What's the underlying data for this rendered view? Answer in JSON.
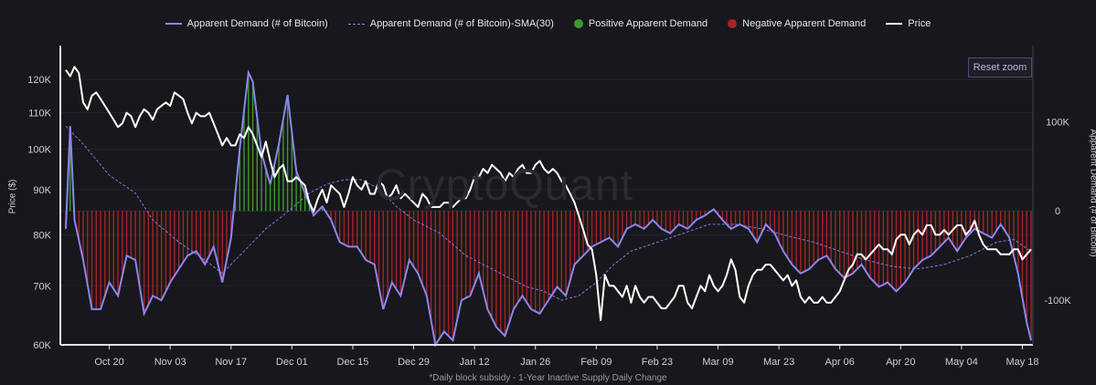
{
  "chart_data": {
    "type": "bar+line",
    "legend": [
      {
        "label": "Apparent Demand (# of Bitcoin)",
        "kind": "line",
        "color": "#8a86f0"
      },
      {
        "label": "Apparent Demand (# of Bitcoin)-SMA(30)",
        "kind": "dash",
        "color": "#8a86f0"
      },
      {
        "label": "Positive Apparent Demand",
        "kind": "dot",
        "color": "#3c9a2e"
      },
      {
        "label": "Negative Apparent Demand",
        "kind": "dot",
        "color": "#a52424"
      },
      {
        "label": "Price",
        "kind": "white",
        "color": "#ffffff"
      }
    ],
    "ylabel_left": "Price ($)",
    "ylabel_right": "Apparent Demand (# of Bitcoin)",
    "left_axis": {
      "scale": "log",
      "ylim": [
        60000,
        128000
      ],
      "ticks": [
        60000,
        70000,
        80000,
        90000,
        100000,
        110000,
        120000
      ],
      "tick_labels": [
        "60K",
        "70K",
        "80K",
        "90K",
        "100K",
        "110K",
        "120K"
      ]
    },
    "right_axis": {
      "ylim": [
        -150000,
        175000
      ],
      "ticks": [
        100000,
        0,
        -100000
      ],
      "tick_labels": [
        "100K",
        "0",
        "-100K"
      ]
    },
    "x_ticks": [
      "Oct 20",
      "Nov 03",
      "Nov 17",
      "Dec 01",
      "Dec 15",
      "Dec 29",
      "Jan 12",
      "Jan 26",
      "Feb 09",
      "Feb 23",
      "Mar 09",
      "Mar 23",
      "Apr 06",
      "Apr 20",
      "May 04",
      "May 18"
    ],
    "x_start_day_offset": -10,
    "x_end_day_offset": 212,
    "demand_anchors": [
      [
        -10,
        -20000
      ],
      [
        -9,
        95000
      ],
      [
        -8,
        -10000
      ],
      [
        -6,
        -55000
      ],
      [
        -4,
        -110000
      ],
      [
        -2,
        -110000
      ],
      [
        0,
        -80000
      ],
      [
        2,
        -95000
      ],
      [
        4,
        -50000
      ],
      [
        6,
        -55000
      ],
      [
        8,
        -115000
      ],
      [
        10,
        -95000
      ],
      [
        12,
        -100000
      ],
      [
        14,
        -80000
      ],
      [
        16,
        -65000
      ],
      [
        18,
        -50000
      ],
      [
        20,
        -45000
      ],
      [
        22,
        -60000
      ],
      [
        24,
        -40000
      ],
      [
        26,
        -80000
      ],
      [
        28,
        -30000
      ],
      [
        30,
        70000
      ],
      [
        32,
        155000
      ],
      [
        33,
        145000
      ],
      [
        35,
        65000
      ],
      [
        37,
        30000
      ],
      [
        39,
        75000
      ],
      [
        41,
        130000
      ],
      [
        43,
        45000
      ],
      [
        45,
        20000
      ],
      [
        47,
        -5000
      ],
      [
        49,
        5000
      ],
      [
        51,
        -10000
      ],
      [
        53,
        -35000
      ],
      [
        55,
        -40000
      ],
      [
        57,
        -40000
      ],
      [
        59,
        -55000
      ],
      [
        61,
        -60000
      ],
      [
        63,
        -110000
      ],
      [
        65,
        -80000
      ],
      [
        67,
        -95000
      ],
      [
        69,
        -55000
      ],
      [
        71,
        -70000
      ],
      [
        73,
        -95000
      ],
      [
        75,
        -150000
      ],
      [
        77,
        -135000
      ],
      [
        79,
        -145000
      ],
      [
        81,
        -100000
      ],
      [
        83,
        -95000
      ],
      [
        85,
        -70000
      ],
      [
        87,
        -110000
      ],
      [
        89,
        -130000
      ],
      [
        91,
        -140000
      ],
      [
        93,
        -110000
      ],
      [
        95,
        -95000
      ],
      [
        97,
        -110000
      ],
      [
        99,
        -115000
      ],
      [
        101,
        -100000
      ],
      [
        103,
        -85000
      ],
      [
        105,
        -95000
      ],
      [
        107,
        -60000
      ],
      [
        109,
        -50000
      ],
      [
        111,
        -40000
      ],
      [
        113,
        -35000
      ],
      [
        115,
        -30000
      ],
      [
        117,
        -40000
      ],
      [
        119,
        -20000
      ],
      [
        121,
        -15000
      ],
      [
        123,
        -20000
      ],
      [
        125,
        -10000
      ],
      [
        127,
        -20000
      ],
      [
        129,
        -25000
      ],
      [
        131,
        -15000
      ],
      [
        133,
        -20000
      ],
      [
        135,
        -10000
      ],
      [
        137,
        -5000
      ],
      [
        139,
        2000
      ],
      [
        141,
        -10000
      ],
      [
        143,
        -20000
      ],
      [
        145,
        -15000
      ],
      [
        147,
        -20000
      ],
      [
        149,
        -35000
      ],
      [
        151,
        -15000
      ],
      [
        153,
        -25000
      ],
      [
        155,
        -45000
      ],
      [
        157,
        -60000
      ],
      [
        159,
        -70000
      ],
      [
        161,
        -65000
      ],
      [
        163,
        -55000
      ],
      [
        165,
        -50000
      ],
      [
        167,
        -65000
      ],
      [
        169,
        -75000
      ],
      [
        171,
        -70000
      ],
      [
        173,
        -60000
      ],
      [
        175,
        -75000
      ],
      [
        177,
        -85000
      ],
      [
        179,
        -80000
      ],
      [
        181,
        -90000
      ],
      [
        183,
        -80000
      ],
      [
        185,
        -65000
      ],
      [
        187,
        -55000
      ],
      [
        189,
        -50000
      ],
      [
        191,
        -40000
      ],
      [
        193,
        -30000
      ],
      [
        195,
        -45000
      ],
      [
        197,
        -30000
      ],
      [
        199,
        -20000
      ],
      [
        201,
        -25000
      ],
      [
        203,
        -30000
      ],
      [
        205,
        -15000
      ],
      [
        207,
        -30000
      ],
      [
        209,
        -70000
      ],
      [
        211,
        -125000
      ],
      [
        212,
        -145000
      ]
    ],
    "sma_anchors": [
      [
        -10,
        95000
      ],
      [
        -6,
        75000
      ],
      [
        0,
        40000
      ],
      [
        6,
        20000
      ],
      [
        10,
        -10000
      ],
      [
        16,
        -35000
      ],
      [
        22,
        -55000
      ],
      [
        26,
        -70000
      ],
      [
        28,
        -60000
      ],
      [
        32,
        -40000
      ],
      [
        36,
        -20000
      ],
      [
        40,
        -5000
      ],
      [
        46,
        20000
      ],
      [
        50,
        30000
      ],
      [
        54,
        35000
      ],
      [
        58,
        35000
      ],
      [
        62,
        25000
      ],
      [
        66,
        5000
      ],
      [
        70,
        -10000
      ],
      [
        76,
        -25000
      ],
      [
        82,
        -50000
      ],
      [
        90,
        -70000
      ],
      [
        96,
        -85000
      ],
      [
        100,
        -90000
      ],
      [
        104,
        -100000
      ],
      [
        108,
        -95000
      ],
      [
        112,
        -80000
      ],
      [
        116,
        -60000
      ],
      [
        120,
        -45000
      ],
      [
        126,
        -35000
      ],
      [
        132,
        -25000
      ],
      [
        138,
        -15000
      ],
      [
        144,
        -15000
      ],
      [
        150,
        -20000
      ],
      [
        156,
        -28000
      ],
      [
        162,
        -35000
      ],
      [
        168,
        -45000
      ],
      [
        174,
        -55000
      ],
      [
        180,
        -62000
      ],
      [
        186,
        -65000
      ],
      [
        192,
        -60000
      ],
      [
        198,
        -50000
      ],
      [
        204,
        -35000
      ],
      [
        208,
        -32000
      ],
      [
        212,
        -45000
      ]
    ],
    "price_anchors": [
      [
        -10,
        123000
      ],
      [
        -9,
        121000
      ],
      [
        -8,
        124000
      ],
      [
        -7,
        122000
      ],
      [
        -6,
        113000
      ],
      [
        -5,
        111000
      ],
      [
        -4,
        115000
      ],
      [
        -3,
        116000
      ],
      [
        -2,
        114000
      ],
      [
        0,
        110000
      ],
      [
        1,
        108000
      ],
      [
        2,
        106000
      ],
      [
        3,
        107000
      ],
      [
        4,
        110000
      ],
      [
        5,
        109000
      ],
      [
        6,
        106000
      ],
      [
        7,
        109000
      ],
      [
        8,
        111000
      ],
      [
        9,
        110000
      ],
      [
        10,
        108000
      ],
      [
        11,
        111000
      ],
      [
        12,
        112000
      ],
      [
        13,
        113000
      ],
      [
        14,
        112000
      ],
      [
        15,
        116000
      ],
      [
        16,
        115000
      ],
      [
        17,
        114000
      ],
      [
        18,
        110000
      ],
      [
        19,
        107000
      ],
      [
        20,
        110000
      ],
      [
        21,
        109000
      ],
      [
        22,
        109000
      ],
      [
        23,
        110000
      ],
      [
        24,
        107000
      ],
      [
        25,
        104000
      ],
      [
        26,
        101000
      ],
      [
        27,
        103000
      ],
      [
        28,
        101000
      ],
      [
        29,
        101000
      ],
      [
        30,
        104000
      ],
      [
        31,
        103000
      ],
      [
        32,
        106000
      ],
      [
        33,
        104000
      ],
      [
        34,
        101000
      ],
      [
        35,
        98000
      ],
      [
        36,
        102000
      ],
      [
        37,
        97000
      ],
      [
        38,
        93000
      ],
      [
        39,
        95000
      ],
      [
        40,
        96000
      ],
      [
        41,
        92000
      ],
      [
        42,
        92000
      ],
      [
        43,
        93000
      ],
      [
        44,
        92000
      ],
      [
        45,
        91000
      ],
      [
        46,
        87000
      ],
      [
        47,
        85000
      ],
      [
        48,
        88000
      ],
      [
        49,
        90000
      ],
      [
        50,
        87000
      ],
      [
        51,
        91000
      ],
      [
        52,
        90000
      ],
      [
        53,
        89000
      ],
      [
        54,
        86000
      ],
      [
        55,
        89000
      ],
      [
        56,
        93000
      ],
      [
        57,
        91000
      ],
      [
        58,
        90000
      ],
      [
        59,
        92000
      ],
      [
        60,
        89000
      ],
      [
        61,
        89000
      ],
      [
        62,
        92000
      ],
      [
        63,
        91000
      ],
      [
        64,
        88000
      ],
      [
        65,
        89000
      ],
      [
        66,
        91000
      ],
      [
        67,
        88000
      ],
      [
        68,
        89000
      ],
      [
        69,
        88000
      ],
      [
        70,
        87000
      ],
      [
        71,
        86000
      ],
      [
        72,
        89000
      ],
      [
        73,
        88000
      ],
      [
        74,
        86000
      ],
      [
        75,
        86000
      ],
      [
        76,
        86000
      ],
      [
        77,
        87000
      ],
      [
        78,
        87000
      ],
      [
        79,
        86000
      ],
      [
        80,
        87000
      ],
      [
        81,
        88000
      ],
      [
        82,
        88000
      ],
      [
        83,
        90000
      ],
      [
        84,
        93000
      ],
      [
        85,
        93000
      ],
      [
        86,
        95000
      ],
      [
        87,
        94000
      ],
      [
        88,
        96000
      ],
      [
        89,
        95000
      ],
      [
        90,
        94000
      ],
      [
        91,
        92000
      ],
      [
        92,
        94000
      ],
      [
        93,
        93000
      ],
      [
        94,
        95000
      ],
      [
        95,
        96000
      ],
      [
        96,
        94000
      ],
      [
        97,
        94000
      ],
      [
        98,
        96000
      ],
      [
        99,
        97000
      ],
      [
        100,
        95000
      ],
      [
        101,
        94000
      ],
      [
        102,
        95000
      ],
      [
        103,
        94000
      ],
      [
        104,
        92000
      ],
      [
        105,
        91000
      ],
      [
        106,
        89000
      ],
      [
        107,
        87000
      ],
      [
        108,
        84000
      ],
      [
        109,
        81000
      ],
      [
        110,
        78000
      ],
      [
        111,
        77000
      ],
      [
        112,
        72000
      ],
      [
        113,
        64000
      ],
      [
        114,
        72000
      ],
      [
        115,
        70000
      ],
      [
        116,
        70000
      ],
      [
        117,
        69000
      ],
      [
        118,
        68000
      ],
      [
        119,
        70000
      ],
      [
        120,
        67000
      ],
      [
        121,
        70000
      ],
      [
        122,
        68000
      ],
      [
        123,
        67000
      ],
      [
        124,
        68000
      ],
      [
        125,
        68000
      ],
      [
        126,
        67000
      ],
      [
        127,
        66000
      ],
      [
        128,
        66000
      ],
      [
        129,
        67000
      ],
      [
        130,
        68000
      ],
      [
        131,
        70000
      ],
      [
        132,
        70000
      ],
      [
        133,
        67000
      ],
      [
        134,
        66000
      ],
      [
        135,
        68000
      ],
      [
        136,
        70000
      ],
      [
        137,
        69000
      ],
      [
        138,
        72000
      ],
      [
        139,
        70000
      ],
      [
        140,
        69000
      ],
      [
        141,
        70000
      ],
      [
        142,
        72000
      ],
      [
        143,
        75000
      ],
      [
        144,
        73000
      ],
      [
        145,
        68000
      ],
      [
        146,
        67000
      ],
      [
        147,
        70000
      ],
      [
        148,
        72000
      ],
      [
        149,
        73000
      ],
      [
        150,
        73000
      ],
      [
        151,
        74000
      ],
      [
        152,
        74000
      ],
      [
        153,
        73000
      ],
      [
        154,
        72000
      ],
      [
        155,
        71000
      ],
      [
        156,
        72000
      ],
      [
        157,
        70000
      ],
      [
        158,
        71000
      ],
      [
        159,
        68000
      ],
      [
        160,
        67000
      ],
      [
        161,
        68000
      ],
      [
        162,
        67000
      ],
      [
        163,
        67000
      ],
      [
        164,
        68000
      ],
      [
        165,
        67000
      ],
      [
        166,
        67000
      ],
      [
        167,
        68000
      ],
      [
        168,
        69000
      ],
      [
        169,
        71000
      ],
      [
        170,
        73000
      ],
      [
        171,
        74000
      ],
      [
        172,
        76000
      ],
      [
        173,
        76000
      ],
      [
        174,
        75000
      ],
      [
        175,
        76000
      ],
      [
        176,
        77000
      ],
      [
        177,
        78000
      ],
      [
        178,
        77000
      ],
      [
        179,
        77000
      ],
      [
        180,
        76000
      ],
      [
        181,
        79000
      ],
      [
        182,
        80000
      ],
      [
        183,
        80000
      ],
      [
        184,
        78000
      ],
      [
        185,
        80000
      ],
      [
        186,
        81000
      ],
      [
        187,
        80000
      ],
      [
        188,
        82000
      ],
      [
        189,
        82000
      ],
      [
        190,
        80000
      ],
      [
        191,
        80000
      ],
      [
        192,
        81000
      ],
      [
        193,
        80000
      ],
      [
        194,
        81000
      ],
      [
        195,
        82000
      ],
      [
        196,
        82000
      ],
      [
        197,
        80000
      ],
      [
        198,
        81000
      ],
      [
        199,
        83000
      ],
      [
        200,
        80000
      ],
      [
        201,
        78000
      ],
      [
        202,
        77000
      ],
      [
        203,
        77000
      ],
      [
        204,
        77000
      ],
      [
        205,
        76000
      ],
      [
        206,
        76000
      ],
      [
        207,
        76000
      ],
      [
        208,
        77000
      ],
      [
        209,
        77000
      ],
      [
        210,
        75000
      ],
      [
        211,
        76000
      ],
      [
        212,
        77000
      ]
    ]
  },
  "reset_zoom_label": "Reset zoom",
  "watermark": "CryptoQuant",
  "footnote": "*Daily block subsidy - 1-Year Inactive Supply Daily Change"
}
